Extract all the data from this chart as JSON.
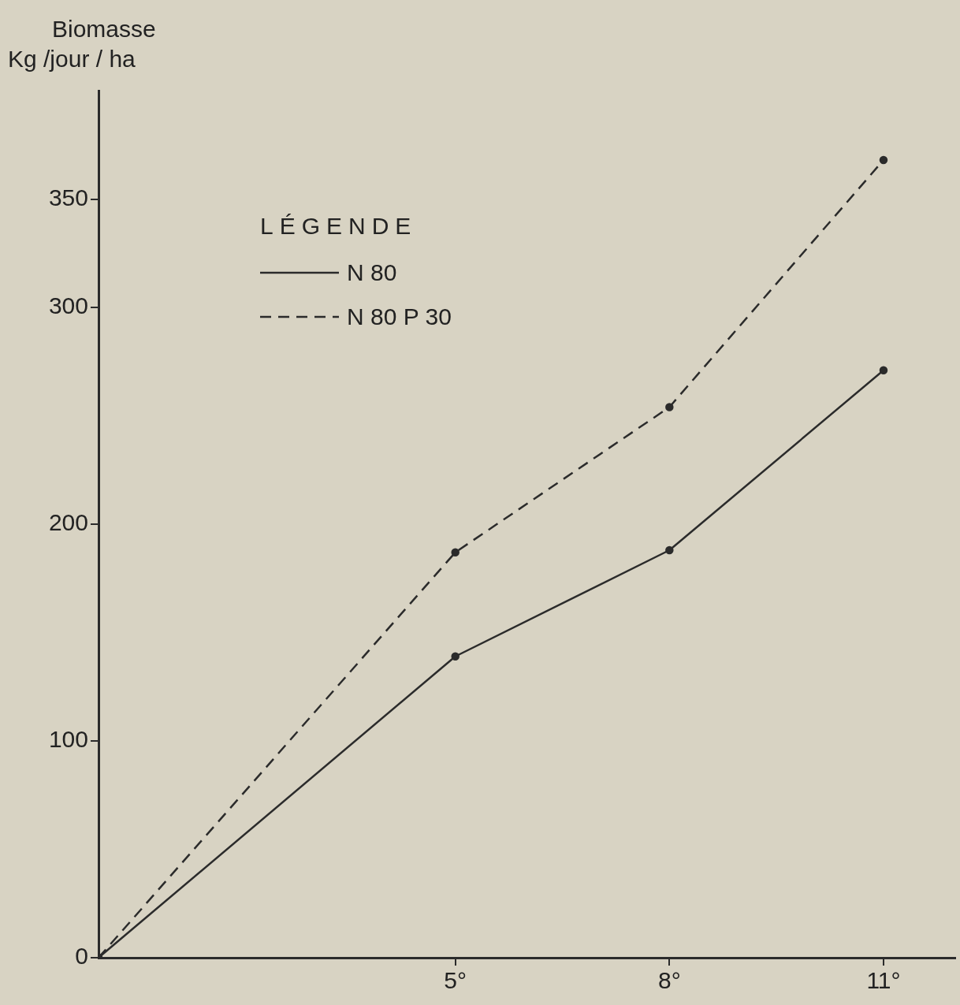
{
  "chart_data": {
    "type": "line",
    "ylabel": "Biomasse\nKg /jour / ha",
    "legend_title": "LÉGENDE",
    "x": [
      0,
      5,
      8,
      11
    ],
    "series": [
      {
        "name": "N 80",
        "color": "#2b2b2b",
        "values": [
          0,
          139,
          188,
          271
        ],
        "line_style": "solid"
      },
      {
        "name": "N 80 P 30",
        "color": "#2b2b2b",
        "values": [
          0,
          187,
          254,
          368
        ],
        "line_style": "dashed"
      }
    ],
    "xlim": [
      0,
      12
    ],
    "xticks": [
      {
        "value": 5,
        "label": "5°"
      },
      {
        "value": 8,
        "label": "8°"
      },
      {
        "value": 11,
        "label": "11°"
      }
    ],
    "ylim": [
      0,
      400
    ],
    "yticks": [
      0,
      100,
      200,
      300,
      350
    ],
    "grid": false,
    "legend": "top left",
    "marker": "circle"
  }
}
